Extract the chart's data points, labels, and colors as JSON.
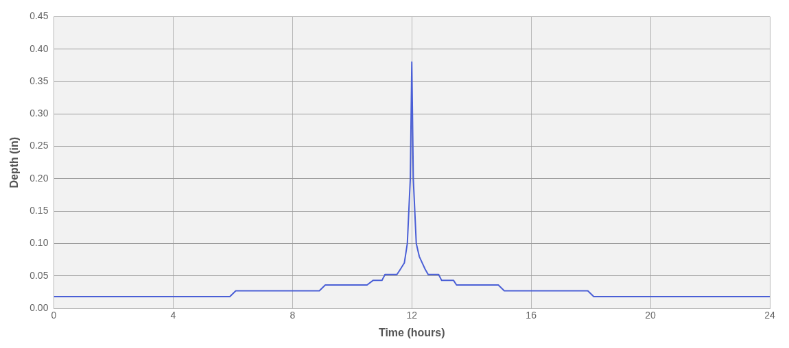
{
  "chart_data": {
    "type": "line",
    "xlabel": "Time (hours)",
    "ylabel": "Depth (in)",
    "xlim": [
      0,
      24
    ],
    "xticks": [
      0,
      4,
      8,
      12,
      16,
      20,
      24
    ],
    "ylim": [
      0,
      0.45
    ],
    "yticks": [
      {
        "value": 0,
        "label": "0.00"
      },
      {
        "value": 0.05,
        "label": "0.05"
      },
      {
        "value": 0.1,
        "label": "0.10"
      },
      {
        "value": 0.15,
        "label": "0.15"
      },
      {
        "value": 0.2,
        "label": "0.20"
      },
      {
        "value": 0.25,
        "label": "0.25"
      },
      {
        "value": 0.3,
        "label": "0.30"
      },
      {
        "value": 0.35,
        "label": "0.35"
      },
      {
        "value": 0.4,
        "label": "0.40"
      },
      {
        "value": 0.45,
        "label": "0.45"
      }
    ],
    "grid": true,
    "legend": false,
    "marker": "none",
    "line_style": "solid",
    "series": [
      {
        "color": "#4a5fd6",
        "x": [
          0,
          5.9,
          6.1,
          8.9,
          9.1,
          10.5,
          10.7,
          11.0,
          11.1,
          11.5,
          11.6,
          11.75,
          11.85,
          11.95,
          12.0,
          12.05,
          12.15,
          12.25,
          12.35,
          12.45,
          12.55,
          12.9,
          13.0,
          13.4,
          13.5,
          14.9,
          15.1,
          17.9,
          18.1,
          24
        ],
        "values": [
          0.018,
          0.018,
          0.027,
          0.027,
          0.036,
          0.036,
          0.043,
          0.043,
          0.052,
          0.052,
          0.059,
          0.07,
          0.1,
          0.2,
          0.38,
          0.2,
          0.1,
          0.08,
          0.07,
          0.06,
          0.052,
          0.052,
          0.043,
          0.043,
          0.036,
          0.036,
          0.027,
          0.027,
          0.018,
          0.018
        ]
      }
    ]
  }
}
